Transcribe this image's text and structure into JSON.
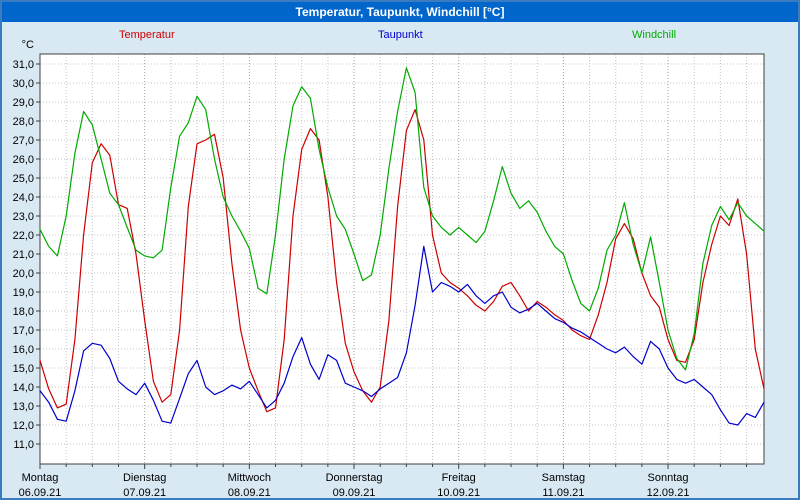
{
  "window": {
    "title_bar": "Temperatur, Taupunkt, Windchill [°C]"
  },
  "colors": {
    "title_bar": "#0066cc",
    "page_background": "#d9e9f4",
    "page_border": "#3b7bbf",
    "plot_background": "#ffffff",
    "plot_frame": "#404040",
    "grid": "#c4c4c4",
    "grid_day": "#a0a0a0",
    "axis_text": "#000000",
    "temperatur": "#cc0000",
    "taupunkt": "#0000cc",
    "windchill": "#00aa00"
  },
  "legend": {
    "items": [
      {
        "label": "Temperatur",
        "color": "#cc0000"
      },
      {
        "label": "Taupunkt",
        "color": "#0000cc"
      },
      {
        "label": "Windchill",
        "color": "#00aa00"
      }
    ]
  },
  "chart_data": {
    "type": "line",
    "title": "Temperatur, Taupunkt, Windchill [°C]",
    "xlabel": "",
    "ylabel": "°C",
    "ylim": [
      11,
      31
    ],
    "ytick_step": 1.0,
    "ytick_labels": [
      "11,0",
      "12,0",
      "13,0",
      "14,0",
      "15,0",
      "16,0",
      "17,0",
      "18,0",
      "19,0",
      "20,0",
      "21,0",
      "22,0",
      "23,0",
      "24,0",
      "25,0",
      "26,0",
      "27,0",
      "28,0",
      "29,0",
      "30,0",
      "31,0"
    ],
    "grid": true,
    "legend_position": "top",
    "x_axis": {
      "sample_interval_hours": 2,
      "days": [
        {
          "name": "Montag",
          "date": "06.09.21"
        },
        {
          "name": "Dienstag",
          "date": "07.09.21"
        },
        {
          "name": "Mittwoch",
          "date": "08.09.21"
        },
        {
          "name": "Donnerstag",
          "date": "09.09.21"
        },
        {
          "name": "Freitag",
          "date": "10.09.21"
        },
        {
          "name": "Samstag",
          "date": "11.09.21"
        },
        {
          "name": "Sonntag",
          "date": "12.09.21"
        }
      ]
    },
    "series": [
      {
        "name": "Temperatur",
        "color": "#cc0000",
        "values": [
          15.4,
          13.9,
          12.9,
          13.1,
          16.5,
          22.0,
          25.8,
          26.8,
          26.2,
          23.6,
          23.4,
          21.0,
          17.5,
          14.3,
          13.2,
          13.6,
          17.0,
          23.5,
          26.8,
          27.0,
          27.3,
          25.0,
          20.5,
          17.0,
          15.0,
          13.8,
          12.7,
          12.9,
          16.5,
          23.0,
          26.5,
          27.6,
          27.0,
          24.0,
          19.5,
          16.3,
          14.8,
          13.8,
          13.2,
          14.0,
          17.5,
          23.5,
          27.5,
          28.6,
          27.0,
          22.0,
          20.0,
          19.5,
          19.2,
          18.8,
          18.3,
          18.0,
          18.5,
          19.3,
          19.5,
          18.8,
          18.0,
          18.5,
          18.2,
          17.8,
          17.5,
          17.0,
          16.7,
          16.5,
          17.8,
          19.5,
          21.8,
          22.6,
          21.8,
          20.0,
          18.8,
          18.2,
          16.5,
          15.4,
          15.3,
          16.5,
          19.5,
          21.5,
          23.0,
          22.5,
          23.9,
          21.0,
          16.0,
          13.9
        ]
      },
      {
        "name": "Taupunkt",
        "color": "#0000cc",
        "values": [
          13.8,
          13.2,
          12.3,
          12.2,
          13.8,
          15.9,
          16.3,
          16.2,
          15.5,
          14.3,
          13.9,
          13.6,
          14.2,
          13.3,
          12.2,
          12.1,
          13.4,
          14.7,
          15.4,
          14.0,
          13.6,
          13.8,
          14.1,
          13.9,
          14.3,
          13.6,
          12.9,
          13.3,
          14.2,
          15.6,
          16.6,
          15.2,
          14.4,
          15.7,
          15.4,
          14.2,
          14.0,
          13.8,
          13.5,
          13.9,
          14.2,
          14.5,
          15.8,
          18.3,
          21.4,
          19.0,
          19.5,
          19.3,
          19.0,
          19.4,
          18.8,
          18.4,
          18.8,
          19.0,
          18.2,
          17.9,
          18.1,
          18.4,
          18.0,
          17.6,
          17.4,
          17.1,
          16.9,
          16.6,
          16.3,
          16.0,
          15.8,
          16.1,
          15.6,
          15.2,
          16.4,
          16.0,
          15.0,
          14.4,
          14.2,
          14.4,
          14.0,
          13.6,
          12.8,
          12.1,
          12.0,
          12.6,
          12.4,
          13.2
        ]
      },
      {
        "name": "Windchill",
        "color": "#00aa00",
        "values": [
          22.3,
          21.4,
          20.9,
          23.0,
          26.3,
          28.5,
          27.8,
          26.0,
          24.2,
          23.6,
          22.4,
          21.2,
          20.9,
          20.8,
          21.2,
          24.5,
          27.2,
          27.9,
          29.3,
          28.6,
          26.0,
          24.0,
          23.0,
          22.2,
          21.3,
          19.2,
          18.9,
          22.0,
          26.0,
          28.8,
          29.8,
          29.2,
          26.5,
          24.5,
          23.0,
          22.3,
          21.0,
          19.6,
          19.9,
          22.0,
          25.5,
          28.5,
          30.8,
          29.5,
          24.5,
          23.0,
          22.4,
          22.0,
          22.4,
          22.0,
          21.6,
          22.2,
          23.8,
          25.6,
          24.2,
          23.4,
          23.8,
          23.2,
          22.2,
          21.4,
          21.0,
          19.6,
          18.4,
          18.0,
          19.2,
          21.2,
          22.0,
          23.7,
          21.5,
          20.0,
          21.9,
          19.5,
          17.0,
          15.5,
          14.9,
          16.8,
          20.5,
          22.5,
          23.5,
          22.8,
          23.7,
          23.0,
          22.6,
          22.2
        ]
      }
    ]
  }
}
